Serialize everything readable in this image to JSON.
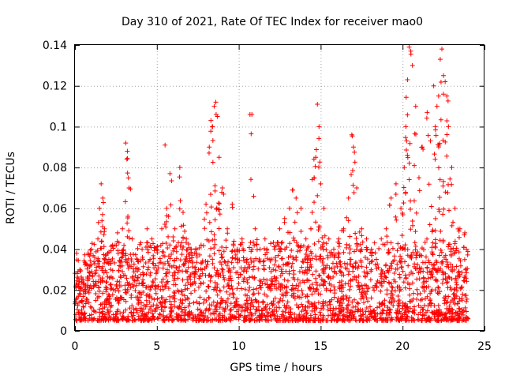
{
  "chart_data": {
    "type": "scatter",
    "title": "Day 310 of 2021, Rate Of TEC Index for receiver mao0",
    "xlabel": "GPS time / hours",
    "ylabel": "ROTI / TECUs",
    "xlim": [
      0,
      25
    ],
    "ylim": [
      0,
      0.14
    ],
    "xticks": [
      0,
      5,
      10,
      15,
      20,
      25
    ],
    "xtick_labels": [
      "0",
      "5",
      "10",
      "15",
      "20",
      "25"
    ],
    "yticks": [
      0,
      0.02,
      0.04,
      0.06,
      0.08,
      0.1,
      0.12,
      0.14
    ],
    "ytick_labels": [
      "0",
      "0.02",
      "0.04",
      "0.06",
      "0.08",
      "0.1",
      "0.12",
      "0.14"
    ],
    "grid": true,
    "marker": "plus",
    "color": "#ff0000",
    "series": [
      {
        "x": [
          0.1,
          0.3,
          0.5,
          0.8,
          1.0,
          1.2,
          1.4,
          1.5,
          1.6,
          1.7,
          1.8,
          2.0,
          2.3,
          2.6,
          2.9,
          3.1,
          3.2,
          3.3,
          3.5,
          3.8,
          4.1,
          4.4,
          4.7,
          5.0,
          5.3,
          5.5,
          5.6,
          5.8,
          6.1,
          6.4,
          6.6,
          6.8,
          7.1,
          7.4,
          7.7,
          8.0,
          8.2,
          8.3,
          8.4,
          8.5,
          8.6,
          8.7,
          8.8,
          9.0,
          9.3,
          9.6,
          9.9,
          10.2,
          10.5,
          10.8,
          11.0,
          11.3,
          11.6,
          11.9,
          12.2,
          12.5,
          12.8,
          13.1,
          13.3,
          13.5,
          13.8,
          14.1,
          14.4,
          14.6,
          14.7,
          14.8,
          14.9,
          15.0,
          15.2,
          15.5,
          15.8,
          16.1,
          16.4,
          16.7,
          16.9,
          17.0,
          17.2,
          17.5,
          17.8,
          18.1,
          18.4,
          18.7,
          19.0,
          19.3,
          19.6,
          19.9,
          20.1,
          20.2,
          20.3,
          20.4,
          20.5,
          20.6,
          20.8,
          21.0,
          21.2,
          21.5,
          21.7,
          21.9,
          22.0,
          22.1,
          22.2,
          22.3,
          22.4,
          22.5,
          22.6,
          22.7,
          22.8,
          23.0,
          23.2,
          23.5,
          23.8,
          23.9
        ],
        "y": [
          0.038,
          0.03,
          0.025,
          0.032,
          0.04,
          0.036,
          0.045,
          0.06,
          0.072,
          0.065,
          0.05,
          0.038,
          0.042,
          0.048,
          0.05,
          0.092,
          0.088,
          0.07,
          0.045,
          0.035,
          0.04,
          0.05,
          0.045,
          0.04,
          0.05,
          0.091,
          0.06,
          0.077,
          0.05,
          0.08,
          0.058,
          0.045,
          0.04,
          0.038,
          0.042,
          0.062,
          0.09,
          0.103,
          0.1,
          0.11,
          0.112,
          0.105,
          0.085,
          0.07,
          0.05,
          0.062,
          0.04,
          0.045,
          0.035,
          0.106,
          0.05,
          0.04,
          0.045,
          0.035,
          0.04,
          0.05,
          0.055,
          0.06,
          0.069,
          0.065,
          0.06,
          0.045,
          0.05,
          0.075,
          0.085,
          0.111,
          0.1,
          0.072,
          0.06,
          0.045,
          0.04,
          0.045,
          0.05,
          0.065,
          0.096,
          0.09,
          0.07,
          0.05,
          0.045,
          0.04,
          0.035,
          0.045,
          0.05,
          0.065,
          0.072,
          0.06,
          0.08,
          0.1,
          0.123,
          0.139,
          0.137,
          0.13,
          0.11,
          0.075,
          0.09,
          0.107,
          0.093,
          0.12,
          0.1,
          0.11,
          0.115,
          0.133,
          0.138,
          0.125,
          0.122,
          0.115,
          0.1,
          0.08,
          0.06,
          0.05,
          0.048,
          0.04
        ]
      }
    ],
    "dense_band": {
      "x_range": [
        0,
        24
      ],
      "y_range": [
        0.005,
        0.04
      ],
      "note": ""
    }
  }
}
